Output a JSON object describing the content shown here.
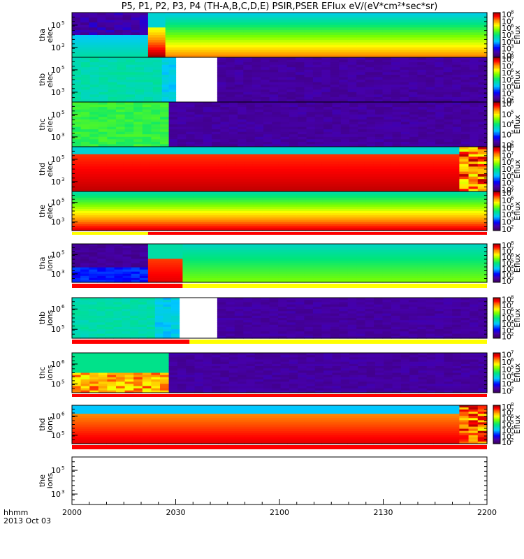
{
  "chart_data": {
    "type": "heatmap",
    "title": "P5, P1, P2, P3, P4 (TH-A,B,C,D,E) PSIR,PSER EFlux eV/(eV*cm²*sec*sr)",
    "colorbar_label": "Eflux",
    "x_label": "hhmm",
    "date_label": "2013 Oct 03",
    "x_ticks": [
      "2000",
      "2030",
      "2100",
      "2130",
      "2200"
    ],
    "x_range": [
      "2000",
      "2200"
    ],
    "y_scale": "log",
    "panels": [
      {
        "probe": "tha",
        "species": "elec",
        "y_ticks": [
          "10^5",
          "10^3"
        ],
        "cbar": [
          "10^8",
          "10^7",
          "10^6",
          "10^5",
          "10^4",
          "10^3",
          "10^2"
        ],
        "segments": [
          {
            "from": 0,
            "to": 22,
            "profile": "hot"
          },
          {
            "from": 22,
            "to": 27,
            "profile": "warm"
          },
          {
            "from": 27,
            "to": 120,
            "profile": "cold"
          }
        ],
        "status_bar": []
      },
      {
        "probe": "thb",
        "species": "elec",
        "y_ticks": [
          "10^5",
          "10^3"
        ],
        "cbar": [
          "10^8",
          "10^7",
          "10^6",
          "10^5",
          "10^4",
          "10^3",
          "10^2"
        ],
        "segments": [
          {
            "from": 0,
            "to": 26,
            "profile": "teal"
          },
          {
            "from": 26,
            "to": 30,
            "profile": "blue"
          },
          {
            "from": 30,
            "to": 42,
            "profile": "nodata"
          },
          {
            "from": 42,
            "to": 120,
            "profile": "empty"
          }
        ],
        "status_bar": []
      },
      {
        "probe": "thc",
        "species": "elec",
        "y_ticks": [
          "10^5",
          "10^3"
        ],
        "cbar": [
          "10^6",
          "10^5",
          "10^4",
          "10^3",
          "10^2"
        ],
        "segments": [
          {
            "from": 0,
            "to": 28,
            "profile": "green"
          },
          {
            "from": 28,
            "to": 120,
            "profile": "empty"
          }
        ],
        "status_bar": []
      },
      {
        "probe": "thd",
        "species": "elec",
        "y_ticks": [
          "10^5",
          "10^3"
        ],
        "cbar": [
          "10^8",
          "10^7",
          "10^6",
          "10^5",
          "10^4",
          "10^3",
          "10^2"
        ],
        "segments": [
          {
            "from": 0,
            "to": 112,
            "profile": "hot_top"
          },
          {
            "from": 112,
            "to": 120,
            "profile": "mixed"
          }
        ],
        "status_bar": []
      },
      {
        "probe": "the",
        "species": "elec",
        "y_ticks": [
          "10^5",
          "10^3"
        ],
        "cbar": [
          "10^7",
          "10^6",
          "10^5",
          "10^4",
          "10^3",
          "10^2"
        ],
        "segments": [
          {
            "from": 0,
            "to": 120,
            "profile": "sheet"
          }
        ],
        "status_bar": [
          {
            "from": 0,
            "to": 22,
            "color": "#ffff00"
          },
          {
            "from": 22,
            "to": 120,
            "color": "#ff0000"
          }
        ]
      },
      {
        "probe": "tha",
        "species": "ions",
        "y_ticks": [
          "10^5",
          "10^3"
        ],
        "cbar": [
          "10^8",
          "10^7",
          "10^6",
          "10^5",
          "10^4",
          "10^3",
          "10^2"
        ],
        "segments": [
          {
            "from": 0,
            "to": 22,
            "profile": "dark_ion"
          },
          {
            "from": 22,
            "to": 32,
            "profile": "ion_hot"
          },
          {
            "from": 32,
            "to": 120,
            "profile": "ion_cold"
          }
        ],
        "status_bar": [
          {
            "from": 0,
            "to": 32,
            "color": "#ff0000"
          },
          {
            "from": 32,
            "to": 120,
            "color": "#ffff00"
          }
        ]
      },
      {
        "probe": "thb",
        "species": "ions",
        "y_ticks": [
          "10^6",
          "10^5"
        ],
        "cbar": [
          "10^8",
          "10^7",
          "10^6",
          "10^5",
          "10^4",
          "10^3",
          "10^2"
        ],
        "segments": [
          {
            "from": 0,
            "to": 24,
            "profile": "teal"
          },
          {
            "from": 24,
            "to": 31,
            "profile": "blue"
          },
          {
            "from": 31,
            "to": 42,
            "profile": "nodata"
          },
          {
            "from": 42,
            "to": 120,
            "profile": "empty"
          }
        ],
        "status_bar": [
          {
            "from": 0,
            "to": 34,
            "color": "#ff0000"
          },
          {
            "from": 34,
            "to": 120,
            "color": "#ffff00"
          }
        ]
      },
      {
        "probe": "thc",
        "species": "ions",
        "y_ticks": [
          "10^6",
          "10^5"
        ],
        "cbar": [
          "10^7",
          "10^6",
          "10^5",
          "10^4",
          "10^3",
          "10^2"
        ],
        "segments": [
          {
            "from": 0,
            "to": 28,
            "profile": "ion_green"
          },
          {
            "from": 28,
            "to": 120,
            "profile": "empty"
          }
        ],
        "status_bar": [
          {
            "from": 0,
            "to": 120,
            "color": "#ff0000"
          }
        ]
      },
      {
        "probe": "thd",
        "species": "ions",
        "y_ticks": [
          "10^6",
          "10^5"
        ],
        "cbar": [
          "10^8",
          "10^7",
          "10^6",
          "10^5",
          "10^4",
          "10^3",
          "10^2"
        ],
        "segments": [
          {
            "from": 0,
            "to": 112,
            "profile": "ion_hot_top"
          },
          {
            "from": 112,
            "to": 120,
            "profile": "mixed"
          }
        ],
        "status_bar": [
          {
            "from": 0,
            "to": 120,
            "color": "#ff0000"
          }
        ]
      },
      {
        "probe": "the",
        "species": "ions",
        "y_ticks": [
          "10^5",
          "10^3"
        ],
        "cbar": [],
        "segments": [],
        "status_bar": []
      }
    ]
  }
}
